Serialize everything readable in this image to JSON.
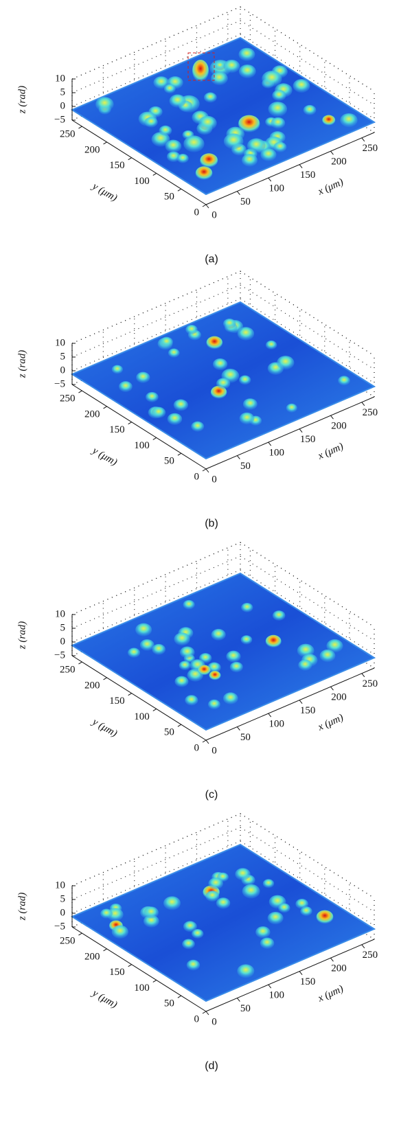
{
  "chart_data": [
    {
      "type": "surface",
      "caption": "(a)",
      "xlabel": "x (μm)",
      "ylabel": "y (μm)",
      "zlabel": "z (rad)",
      "xlim": [
        0,
        270
      ],
      "ylim": [
        0,
        270
      ],
      "zlim": [
        -5,
        10
      ],
      "xticks": [
        0,
        50,
        100,
        150,
        200,
        250
      ],
      "yticks": [
        0,
        50,
        100,
        150,
        200,
        250
      ],
      "zticks": [
        {
          "value": -5,
          "label": "−5"
        },
        0,
        5,
        10
      ]
    },
    {
      "type": "surface",
      "caption": "(b)",
      "xlabel": "x (μm)",
      "ylabel": "y (μm)",
      "zlabel": "z (rad)",
      "xlim": [
        0,
        270
      ],
      "ylim": [
        0,
        270
      ],
      "zlim": [
        -5,
        10
      ],
      "xticks": [
        0,
        50,
        100,
        150,
        200,
        250
      ],
      "yticks": [
        0,
        50,
        100,
        150,
        200,
        250
      ],
      "zticks": [
        {
          "value": -5,
          "label": "−5"
        },
        0,
        5,
        10
      ]
    },
    {
      "type": "surface",
      "caption": "(c)",
      "xlabel": "x (μm)",
      "ylabel": "y (μm)",
      "zlabel": "z (rad)",
      "xlim": [
        0,
        270
      ],
      "ylim": [
        0,
        270
      ],
      "zlim": [
        -5,
        10
      ],
      "xticks": [
        0,
        50,
        100,
        150,
        200,
        250
      ],
      "yticks": [
        0,
        50,
        100,
        150,
        200,
        250
      ],
      "zticks": [
        {
          "value": -5,
          "label": "−5"
        },
        0,
        5,
        10
      ]
    },
    {
      "type": "surface",
      "caption": "(d)",
      "xlabel": "x (μm)",
      "ylabel": "y (μm)",
      "zlabel": "z (rad)",
      "xlim": [
        0,
        270
      ],
      "ylim": [
        0,
        270
      ],
      "zlim": [
        -5,
        10
      ],
      "xticks": [
        0,
        50,
        100,
        150,
        200,
        250
      ],
      "yticks": [
        0,
        50,
        100,
        150,
        200,
        250
      ],
      "zticks": [
        {
          "value": -5,
          "label": "−5"
        },
        0,
        5,
        10
      ]
    }
  ]
}
